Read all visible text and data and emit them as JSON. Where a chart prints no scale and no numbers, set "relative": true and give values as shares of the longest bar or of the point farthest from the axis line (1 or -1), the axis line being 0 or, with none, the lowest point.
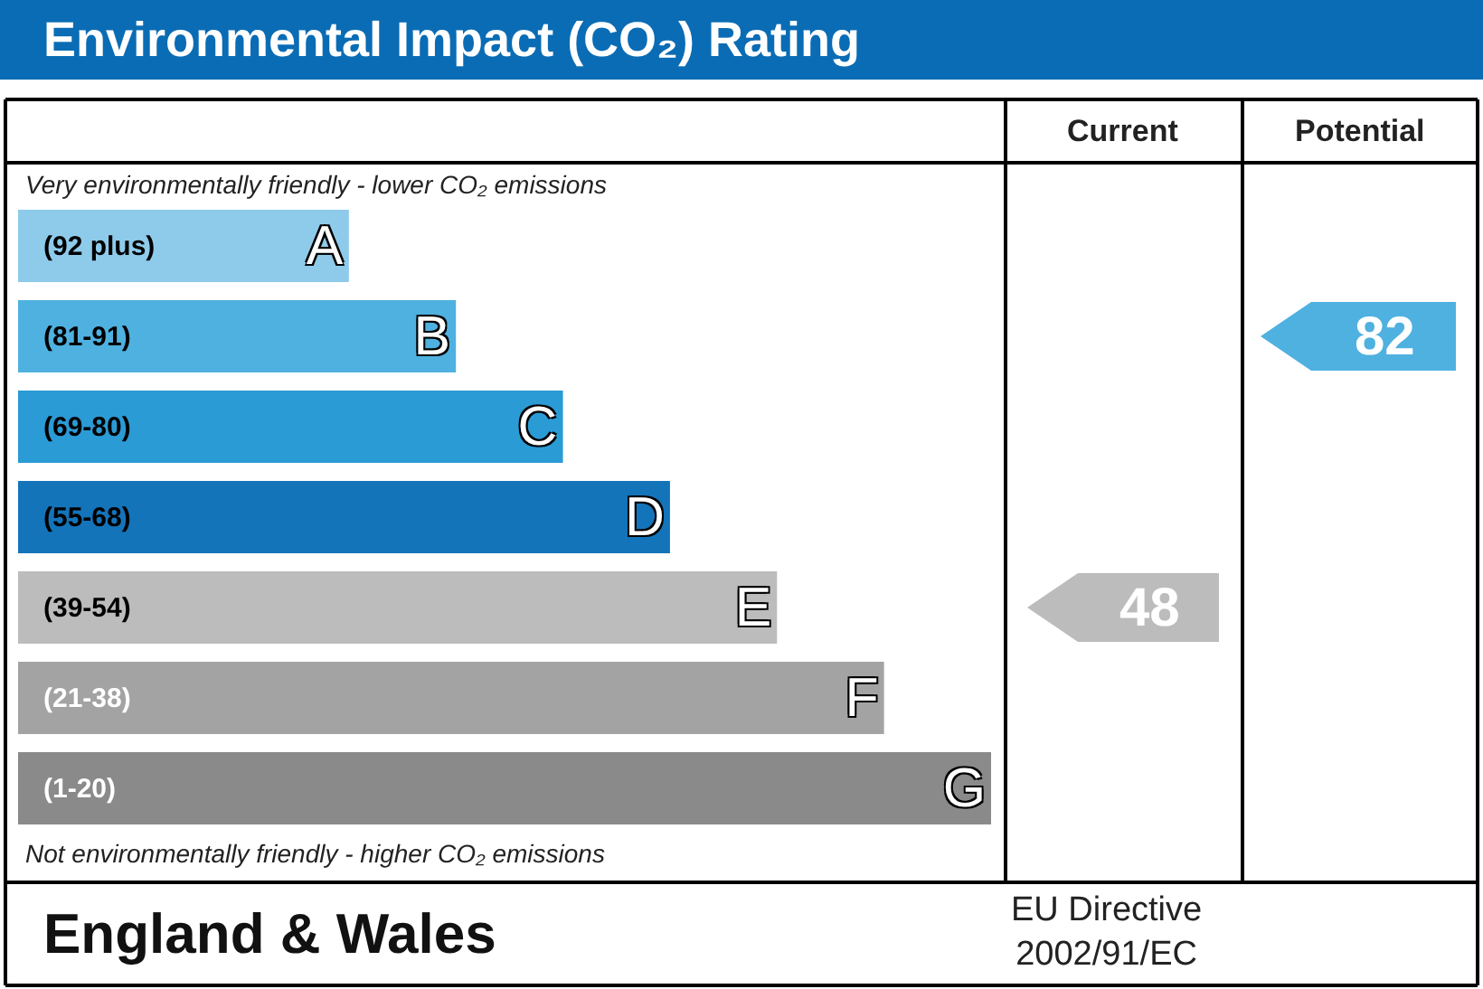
{
  "chart_data": {
    "type": "bar",
    "orientation": "horizontal",
    "relative": true,
    "title": "Environmental Impact (CO₂) Rating",
    "categories": [
      "A",
      "B",
      "C",
      "D",
      "E",
      "F",
      "G"
    ],
    "values": [
      0.34,
      0.45,
      0.56,
      0.67,
      0.78,
      0.89,
      1.0
    ],
    "colors": [
      "#8ecbeb",
      "#4fb1e0",
      "#2b9bd6",
      "#1474ba",
      "#bcbcbc",
      "#a3a3a3",
      "#8a8a8a"
    ],
    "annotations": [
      "Current",
      "Potential",
      "Very environmentally friendly - lower CO₂ emissions",
      "Not environmentally friendly - higher CO₂ emissions",
      "England & Wales",
      "EU Directive\n2002/91/EC",
      "(92 plus)",
      "(81-91)",
      "(69-80)",
      "(55-68)",
      "(39-54)",
      "(21-38)",
      "(1-20)",
      "48",
      "82"
    ]
  }
}
